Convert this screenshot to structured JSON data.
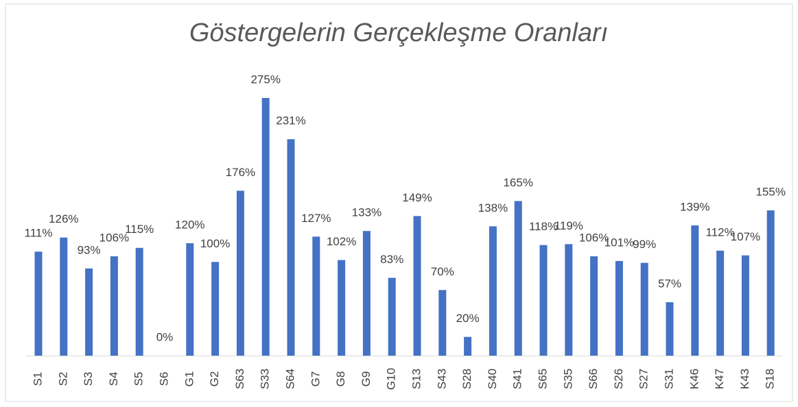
{
  "chart_data": {
    "type": "bar",
    "title": "Göstergelerin Gerçekleşme Oranları",
    "categories": [
      "S1",
      "S2",
      "S3",
      "S4",
      "S5",
      "S6",
      "G1",
      "G2",
      "S63",
      "S33",
      "S64",
      "G7",
      "G8",
      "G9",
      "G10",
      "S13",
      "S43",
      "S28",
      "S40",
      "S41",
      "S65",
      "S35",
      "S66",
      "S26",
      "S27",
      "S31",
      "K46",
      "K47",
      "K43",
      "S18"
    ],
    "values": [
      111,
      126,
      93,
      106,
      115,
      0,
      120,
      100,
      176,
      275,
      231,
      127,
      102,
      133,
      83,
      149,
      70,
      20,
      138,
      165,
      118,
      119,
      106,
      101,
      99,
      57,
      139,
      112,
      107,
      155
    ],
    "value_labels": [
      "111%",
      "126%",
      "93%",
      "106%",
      "115%",
      "0%",
      "120%",
      "100%",
      "176%",
      "275%",
      "231%",
      "127%",
      "102%",
      "133%",
      "83%",
      "149%",
      "70%",
      "20%",
      "138%",
      "165%",
      "118%",
      "119%",
      "106%",
      "101%",
      "99%",
      "57%",
      "139%",
      "112%",
      "107%",
      "155%"
    ],
    "color": "#4472c4"
  }
}
